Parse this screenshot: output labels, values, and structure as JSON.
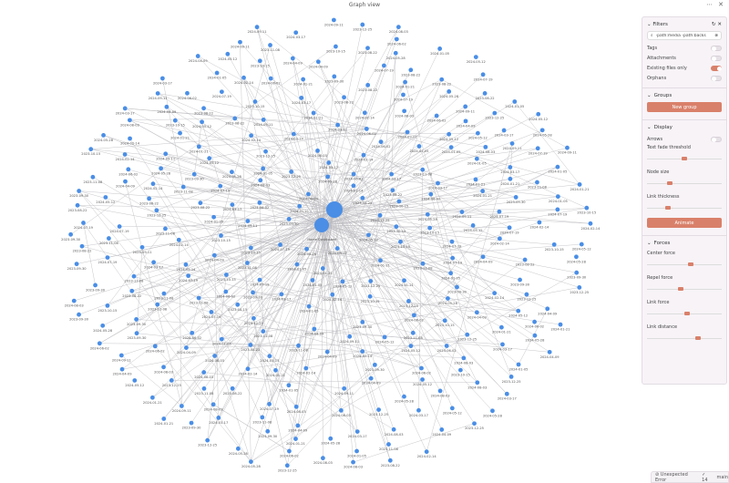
{
  "title": "Graph view",
  "top_icons": [
    "more-options-icon",
    "close-icon"
  ],
  "colors": {
    "node": "#4a8ee6",
    "edge": "#b9b9be",
    "accent": "#d9806a",
    "panel_bg": "#f7f3f7"
  },
  "panel": {
    "filters": {
      "title": "Filters",
      "search_value": "-path:media -path:backs",
      "toggles": [
        {
          "label": "Tags",
          "on": false
        },
        {
          "label": "Attachments",
          "on": false
        },
        {
          "label": "Existing files only",
          "on": true
        },
        {
          "label": "Orphans",
          "on": false
        }
      ]
    },
    "groups": {
      "title": "Groups",
      "new_group": "New group"
    },
    "display": {
      "title": "Display",
      "arrows_label": "Arrows",
      "arrows_on": false,
      "sliders": [
        {
          "label": "Text fade threshold",
          "value": 0.5
        },
        {
          "label": "Node size",
          "value": 0.3
        },
        {
          "label": "Link thickness",
          "value": 0.28
        }
      ],
      "animate": "Animate"
    },
    "forces": {
      "title": "Forces",
      "sliders": [
        {
          "label": "Center force",
          "value": 0.58
        },
        {
          "label": "Repel force",
          "value": 0.45
        },
        {
          "label": "Link force",
          "value": 0.54
        },
        {
          "label": "Link distance",
          "value": 0.68
        }
      ]
    }
  },
  "status": {
    "error": "Unexpected Error",
    "count": "14",
    "branch": "main"
  },
  "graph": {
    "hub_label": "Home Dashboard",
    "labels": [
      "2024-05-12",
      "2023-11-08",
      "2024-01-21",
      "2024-03-17",
      "2023-09-30",
      "2024-02-14",
      "2024-06-02",
      "2023-12-25",
      "2024-04-09",
      "2023-10-15",
      "2024-07-19",
      "2024-08-03",
      "2023-08-22",
      "2024-05-28",
      "2024-01-05",
      "2024-09-11"
    ]
  }
}
